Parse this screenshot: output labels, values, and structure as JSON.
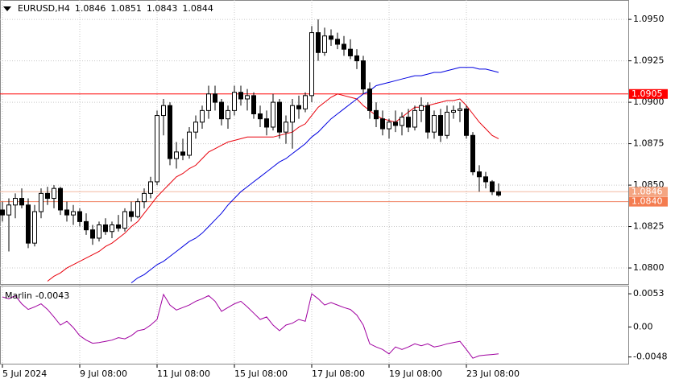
{
  "chart_data": [
    {
      "type": "candlestick",
      "title": "EURUSD,H4",
      "categories": [
        "5 Jul 2024",
        null,
        null,
        null,
        null,
        null,
        null,
        null,
        null,
        null,
        null,
        null,
        "9 Jul 08:00",
        null,
        null,
        null,
        null,
        null,
        null,
        null,
        null,
        null,
        null,
        null,
        "11 Jul 08:00",
        null,
        null,
        null,
        null,
        null,
        null,
        null,
        null,
        null,
        null,
        null,
        "15 Jul 08:00",
        null,
        null,
        null,
        null,
        null,
        null,
        null,
        null,
        null,
        null,
        null,
        "17 Jul 08:00",
        null,
        null,
        null,
        null,
        null,
        null,
        null,
        null,
        null,
        null,
        null,
        "19 Jul 08:00",
        null,
        null,
        null,
        null,
        null,
        null,
        null,
        null,
        null,
        null,
        null,
        "23 Jul 08:00",
        null,
        null,
        null,
        null,
        null
      ],
      "open": [
        1.0835,
        1.0832,
        1.0838,
        1.0842,
        1.0838,
        1.0815,
        1.0834,
        1.0845,
        1.0842,
        1.0848,
        1.0835,
        1.0832,
        1.0834,
        1.0828,
        1.0823,
        1.0818,
        1.0826,
        1.0822,
        1.0826,
        1.0824,
        1.0834,
        1.0831,
        1.084,
        1.0845,
        1.0852,
        1.0892,
        1.0898,
        1.0866,
        1.087,
        1.0868,
        1.0882,
        1.0888,
        1.0895,
        1.0905,
        1.09,
        1.089,
        1.0895,
        1.0906,
        1.0902,
        1.0904,
        1.0893,
        1.089,
        1.0885,
        1.09,
        1.0882,
        1.0888,
        1.0898,
        1.0896,
        1.0904,
        1.0942,
        1.093,
        1.094,
        1.0938,
        1.0935,
        1.0932,
        1.0928,
        1.0925,
        1.0908,
        1.0895,
        1.089,
        1.0884,
        1.0888,
        1.0886,
        1.0891,
        1.0885,
        1.0895,
        1.0898,
        1.0882,
        1.0892,
        1.088,
        1.0894,
        1.0895,
        1.0896,
        1.088,
        1.0858,
        1.0855,
        1.0852,
        1.0846
      ],
      "high": [
        1.084,
        1.0842,
        1.0845,
        1.0848,
        1.0842,
        1.0838,
        1.0848,
        1.0849,
        1.085,
        1.0849,
        1.084,
        1.0838,
        1.0836,
        1.0833,
        1.0826,
        1.0828,
        1.083,
        1.0828,
        1.0832,
        1.0836,
        1.084,
        1.0842,
        1.0848,
        1.0855,
        1.0895,
        1.0902,
        1.09,
        1.0876,
        1.0878,
        1.0885,
        1.0892,
        1.0898,
        1.091,
        1.091,
        1.0902,
        1.0898,
        1.091,
        1.091,
        1.0908,
        1.0906,
        1.0898,
        1.0895,
        1.0905,
        1.0902,
        1.0892,
        1.0902,
        1.0904,
        1.0906,
        1.0946,
        1.095,
        1.0945,
        1.0944,
        1.0942,
        1.094,
        1.0938,
        1.0932,
        1.0928,
        1.0912,
        1.09,
        1.0895,
        1.089,
        1.0895,
        1.0894,
        1.0896,
        1.0898,
        1.0903,
        1.09,
        1.0895,
        1.0896,
        1.0898,
        1.0898,
        1.09,
        1.0898,
        1.0882,
        1.0862,
        1.0858,
        1.0853,
        1.0851
      ],
      "low": [
        1.0828,
        1.081,
        1.083,
        1.0836,
        1.0812,
        1.0813,
        1.083,
        1.0838,
        1.0836,
        1.0832,
        1.0828,
        1.0826,
        1.0825,
        1.082,
        1.0814,
        1.0816,
        1.082,
        1.0818,
        1.0822,
        1.0822,
        1.0828,
        1.083,
        1.0836,
        1.0842,
        1.085,
        1.088,
        1.0862,
        1.086,
        1.0865,
        1.0866,
        1.0878,
        1.0884,
        1.089,
        1.0895,
        1.0886,
        1.0884,
        1.0892,
        1.0898,
        1.0895,
        1.089,
        1.0885,
        1.088,
        1.0883,
        1.0878,
        1.0875,
        1.0872,
        1.089,
        1.0894,
        1.09,
        1.0925,
        1.0928,
        1.0934,
        1.0932,
        1.0928,
        1.0926,
        1.092,
        1.0905,
        1.089,
        1.0885,
        1.088,
        1.0878,
        1.0882,
        1.088,
        1.0882,
        1.0883,
        1.0888,
        1.0878,
        1.0878,
        1.0876,
        1.0878,
        1.089,
        1.0888,
        1.0878,
        1.0856,
        1.0846,
        1.0848,
        1.0844,
        1.0843
      ],
      "close": [
        1.0832,
        1.0838,
        1.0842,
        1.0838,
        1.0815,
        1.0834,
        1.0845,
        1.0842,
        1.0848,
        1.0835,
        1.0832,
        1.0834,
        1.0828,
        1.0823,
        1.0818,
        1.0826,
        1.0822,
        1.0826,
        1.0824,
        1.0834,
        1.0831,
        1.084,
        1.0845,
        1.0852,
        1.0892,
        1.0898,
        1.0866,
        1.087,
        1.0868,
        1.0882,
        1.0888,
        1.0895,
        1.0905,
        1.09,
        1.089,
        1.0895,
        1.0906,
        1.0902,
        1.0904,
        1.0893,
        1.089,
        1.0885,
        1.09,
        1.0882,
        1.0888,
        1.0898,
        1.0896,
        1.0904,
        1.0942,
        1.093,
        1.094,
        1.0938,
        1.0935,
        1.0932,
        1.0928,
        1.0925,
        1.0908,
        1.0895,
        1.089,
        1.0884,
        1.0888,
        1.0886,
        1.0891,
        1.0885,
        1.0895,
        1.0898,
        1.0882,
        1.0892,
        1.088,
        1.0894,
        1.0895,
        1.0896,
        1.088,
        1.0858,
        1.0855,
        1.0852,
        1.0846,
        1.0844
      ],
      "series": [
        {
          "color": "#e8000b",
          "values": [
            null,
            null,
            null,
            null,
            null,
            null,
            null,
            1.0792,
            1.0795,
            1.0797,
            1.08,
            1.0802,
            1.0804,
            1.0806,
            1.0808,
            1.081,
            1.0813,
            1.0815,
            1.0818,
            1.0821,
            1.0825,
            1.0828,
            1.0833,
            1.0838,
            1.0843,
            1.0847,
            1.0851,
            1.0855,
            1.0857,
            1.086,
            1.0862,
            1.0866,
            1.087,
            1.0872,
            1.0874,
            1.0876,
            1.0877,
            1.0878,
            1.0879,
            1.0879,
            1.0879,
            1.0879,
            1.0879,
            1.088,
            1.0881,
            1.0882,
            1.0885,
            1.0887,
            1.0892,
            1.0897,
            1.09,
            1.0903,
            1.0905,
            1.0904,
            1.0903,
            1.0902,
            1.0898,
            1.0895,
            1.0892,
            1.089,
            1.0889,
            1.0888,
            1.0891,
            1.0894,
            1.0897,
            1.0897,
            1.0898,
            1.0899,
            1.09,
            1.0901,
            1.0901,
            1.0902,
            1.0898,
            1.0893,
            1.0888,
            1.0884,
            1.088,
            1.0878
          ]
        },
        {
          "color": "#0000e0",
          "values": [
            null,
            null,
            null,
            null,
            null,
            null,
            null,
            null,
            null,
            null,
            null,
            null,
            null,
            null,
            null,
            null,
            null,
            null,
            null,
            null,
            1.0791,
            1.0794,
            1.0796,
            1.0799,
            1.0802,
            1.0804,
            1.0807,
            1.081,
            1.0813,
            1.0816,
            1.0818,
            1.0821,
            1.0825,
            1.0829,
            1.0833,
            1.0838,
            1.0842,
            1.0846,
            1.0849,
            1.0852,
            1.0855,
            1.0858,
            1.0861,
            1.0864,
            1.0866,
            1.0869,
            1.0872,
            1.0875,
            1.0879,
            1.0882,
            1.0886,
            1.089,
            1.0893,
            1.0896,
            1.0899,
            1.0902,
            1.0905,
            1.0907,
            1.091,
            1.0911,
            1.0912,
            1.0913,
            1.0914,
            1.0915,
            1.0916,
            1.0916,
            1.0917,
            1.0918,
            1.0918,
            1.0919,
            1.092,
            1.0921,
            1.0921,
            1.0921,
            1.092,
            1.092,
            1.0919,
            1.0918
          ]
        }
      ],
      "price_lines": [
        {
          "value": 1.0905,
          "label": "1.0905",
          "color": "#ff0000",
          "label_color": "#ff0000"
        },
        {
          "value": 1.0846,
          "label": "1.0846",
          "color": "#f4b8a0",
          "label_color": "#f4a582"
        },
        {
          "value": 1.084,
          "label": "1.0840",
          "color": "#f08060",
          "label_color": "#f47c50"
        }
      ],
      "bull_color": "#ffffff",
      "bear_color": "#000000",
      "ylim": [
        1.07908,
        1.09617
      ],
      "yticks": [
        {
          "value": 1.08,
          "label": "1.0800"
        },
        {
          "value": 1.0825,
          "label": "1.0825"
        },
        {
          "value": 1.085,
          "label": "1.0850"
        },
        {
          "value": 1.0875,
          "label": "1.0875"
        },
        {
          "value": 1.09,
          "label": "1.0900"
        },
        {
          "value": 1.0925,
          "label": "1.0925"
        },
        {
          "value": 1.095,
          "label": "1.0950"
        }
      ],
      "grid": true
    },
    {
      "type": "line",
      "title": "Marlin",
      "color": "#a000a0",
      "values": [
        0.0048,
        0.0045,
        0.005,
        0.0037,
        0.0028,
        0.0032,
        0.0037,
        0.0028,
        0.0016,
        0.0003,
        0.0009,
        -0.0001,
        -0.0014,
        -0.0021,
        -0.0026,
        -0.0025,
        -0.0023,
        -0.0021,
        -0.0017,
        -0.0019,
        -0.0014,
        -0.0006,
        -0.0004,
        0.0003,
        0.0012,
        0.0052,
        0.0035,
        0.0027,
        0.0031,
        0.0035,
        0.0041,
        0.0045,
        0.005,
        0.0041,
        0.0025,
        0.0031,
        0.0037,
        0.0041,
        0.0032,
        0.0022,
        0.0012,
        0.0016,
        0.0003,
        -0.0006,
        0.0003,
        0.0006,
        0.0012,
        0.0009,
        0.0053,
        0.0045,
        0.0035,
        0.0039,
        0.0035,
        0.0031,
        0.0028,
        0.0019,
        0.0003,
        -0.0027,
        -0.0032,
        -0.0036,
        -0.0043,
        -0.0032,
        -0.0036,
        -0.0032,
        -0.0027,
        -0.003,
        -0.0027,
        -0.0032,
        -0.003,
        -0.0027,
        -0.0025,
        -0.0023,
        -0.0036,
        -0.005,
        -0.0046,
        -0.0045,
        -0.0044,
        -0.0043
      ],
      "ylim": [
        -0.006,
        0.0066
      ],
      "yticks": [
        0.0053,
        {
          "value": 0,
          "label": "0.00"
        },
        -0.0048
      ]
    }
  ]
}
